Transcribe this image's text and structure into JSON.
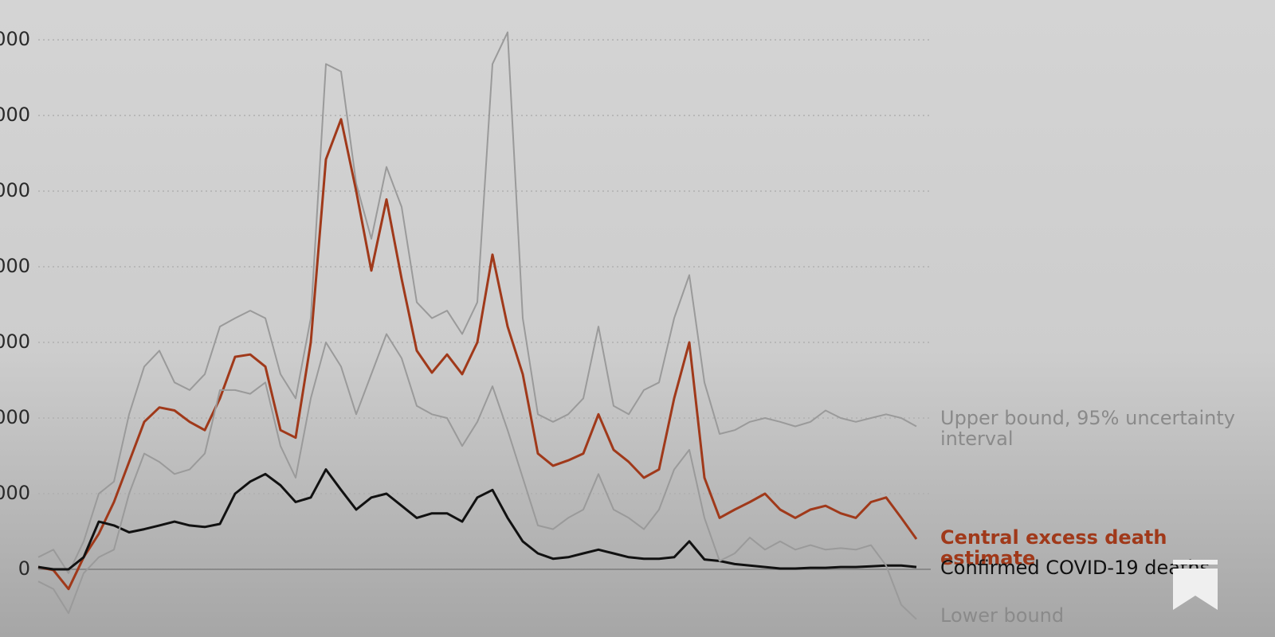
{
  "chart_data": {
    "type": "line",
    "ylim": [
      -9000,
      75000
    ],
    "yticks": [
      0,
      {
        "value": 10000,
        "label": "000"
      },
      {
        "value": 20000,
        "label": "000"
      },
      {
        "value": 30000,
        "label": "000"
      },
      {
        "value": 40000,
        "label": "000"
      },
      {
        "value": 50000,
        "label": "000"
      },
      {
        "value": 60000,
        "label": "000"
      },
      {
        "value": 70000,
        "label": "000"
      }
    ],
    "grid": true,
    "series": [
      {
        "name": "Upper bound, 95% uncertainty interval",
        "color": "#9a9a9a",
        "values": [
          1600,
          2600,
          -500,
          3700,
          10000,
          11600,
          20500,
          26800,
          28900,
          24700,
          23700,
          25800,
          32100,
          33200,
          34200,
          33200,
          25800,
          22600,
          33200,
          66800,
          65800,
          51000,
          43700,
          53200,
          47900,
          35300,
          33200,
          34200,
          31100,
          35300,
          66800,
          71000,
          33200,
          20500,
          19500,
          20500,
          22600,
          32100,
          21600,
          20500,
          23700,
          24700,
          33200,
          38900,
          24700,
          17900,
          18400,
          19500,
          20000,
          19500,
          18900,
          19500,
          21000,
          20000,
          19500,
          20000,
          20500,
          20000,
          18900
        ]
      },
      {
        "name": "Central excess death estimate",
        "color": "#a0391a",
        "values": [
          300,
          -100,
          -2600,
          1600,
          4700,
          8900,
          14200,
          19500,
          21400,
          21000,
          19500,
          18400,
          22600,
          28100,
          28400,
          26800,
          18400,
          17400,
          30000,
          54200,
          59500,
          50000,
          39500,
          48900,
          38400,
          28900,
          26000,
          28400,
          25800,
          30000,
          41600,
          32100,
          25800,
          15300,
          13700,
          14400,
          15300,
          20500,
          15800,
          14200,
          12100,
          13200,
          22600,
          30000,
          12100,
          6800,
          7900,
          8900,
          10000,
          7900,
          6800,
          7900,
          8400,
          7400,
          6800,
          8900,
          9500,
          6800,
          4000
        ]
      },
      {
        "name": "Confirmed COVID-19 deaths",
        "color": "#111111",
        "values": [
          300,
          0,
          0,
          1600,
          6300,
          5800,
          4900,
          5300,
          5800,
          6300,
          5800,
          5600,
          6000,
          10000,
          11600,
          12600,
          11100,
          8900,
          9500,
          13200,
          10500,
          7900,
          9500,
          10000,
          8400,
          6800,
          7400,
          7400,
          6300,
          9500,
          10500,
          6800,
          3700,
          2100,
          1400,
          1600,
          2100,
          2600,
          2100,
          1600,
          1400,
          1400,
          1600,
          3700,
          1300,
          1100,
          700,
          500,
          300,
          100,
          100,
          200,
          200,
          300,
          300,
          400,
          500,
          500,
          300
        ]
      },
      {
        "name": "Lower bound",
        "color": "#9a9a9a",
        "values": [
          -1600,
          -2600,
          -5800,
          -500,
          1600,
          2600,
          10000,
          15300,
          14200,
          12600,
          13200,
          15300,
          23700,
          23700,
          23200,
          24700,
          16300,
          12100,
          22600,
          30000,
          26800,
          20500,
          25800,
          31100,
          27900,
          21600,
          20500,
          20000,
          16300,
          19500,
          24200,
          18400,
          12100,
          5800,
          5300,
          6800,
          7900,
          12600,
          7900,
          6800,
          5300,
          7900,
          13200,
          15800,
          6800,
          1100,
          2100,
          4200,
          2600,
          3700,
          2600,
          3200,
          2600,
          2800,
          2600,
          3200,
          500,
          -4700,
          -6600
        ]
      }
    ]
  }
}
